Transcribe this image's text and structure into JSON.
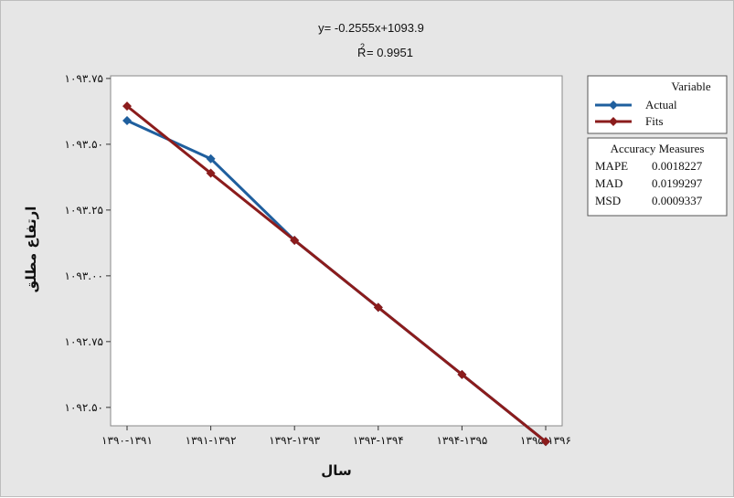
{
  "equation": {
    "line1": "y= -0.2555x+1093.9",
    "r_prefix": "R",
    "r_superscript": "2",
    "r_value": "= 0.9951"
  },
  "legend": {
    "title": "Variable",
    "items": [
      {
        "label": "Actual",
        "color": "#1f5f9e"
      },
      {
        "label": "Fits",
        "color": "#8b1c1c"
      }
    ]
  },
  "accuracy": {
    "title": "Accuracy Measures",
    "rows": [
      {
        "name": "MAPE",
        "value": "0.0018227"
      },
      {
        "name": "MAD",
        "value": "0.0199297"
      },
      {
        "name": "MSD",
        "value": "0.0009337"
      }
    ]
  },
  "chart_data": {
    "type": "line",
    "xlabel": "سال",
    "ylabel": "ارتفاع مطلق",
    "categories": [
      "۱۳۹۰-۱۳۹۱",
      "۱۳۹۱-۱۳۹۲",
      "۱۳۹۲-۱۳۹۳",
      "۱۳۹۳-۱۳۹۴",
      "۱۳۹۴-۱۳۹۵",
      "۱۳۹۵-۱۳۹۶"
    ],
    "x_tick_labels": [
      "۱۳۹۰-۱۳۹۱",
      "۱۳۹۱-۱۳۹۲",
      "۱۳۹۲-۱۳۹۳",
      "۱۳۹۳-۱۳۹۴",
      "۱۳۹۴-۱۳۹۵",
      "۱۳۹۵-۱۳۹۶"
    ],
    "y_ticks": [
      1092.5,
      1092.75,
      1093.0,
      1093.25,
      1093.5,
      1093.75
    ],
    "y_tick_labels": [
      "۱۰۹۲.۵۰",
      "۱۰۹۲.۷۵",
      "۱۰۹۳.۰۰",
      "۱۰۹۳.۲۵",
      "۱۰۹۳.۵۰",
      "۱۰۹۳.۷۵"
    ],
    "ylim": [
      1092.43,
      1093.76
    ],
    "grid": false,
    "legend_position": "right",
    "series": [
      {
        "name": "Actual",
        "color": "#1f5f9e",
        "marker": "diamond",
        "values": [
          1093.59,
          1093.445,
          1093.135,
          1092.88,
          1092.625,
          1092.37
        ]
      },
      {
        "name": "Fits",
        "color": "#8b1c1c",
        "marker": "diamond",
        "values": [
          1093.645,
          1093.39,
          1093.135,
          1092.88,
          1092.625,
          1092.37
        ]
      }
    ]
  }
}
